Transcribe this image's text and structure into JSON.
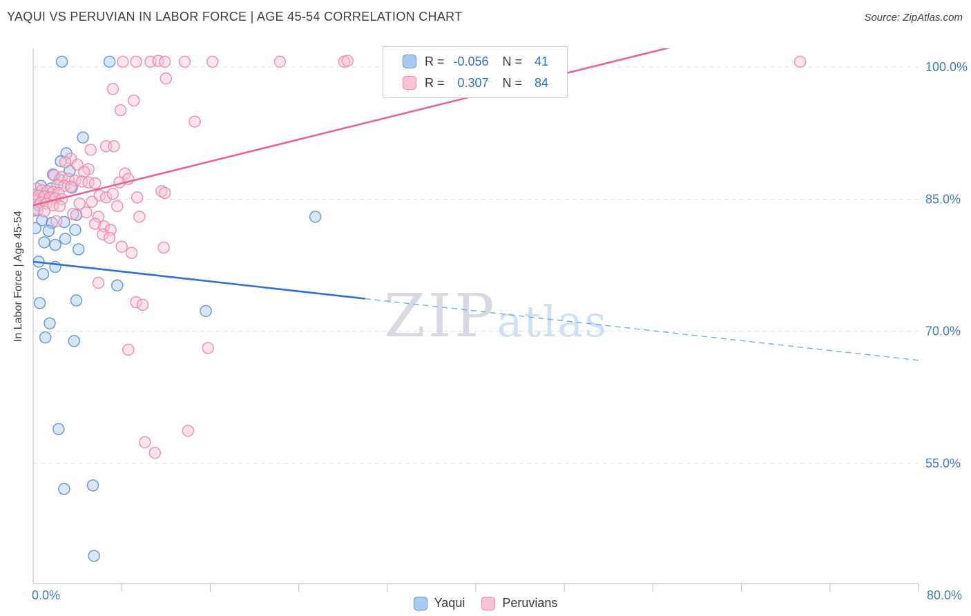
{
  "header": {
    "title": "YAQUI VS PERUVIAN IN LABOR FORCE | AGE 45-54 CORRELATION CHART",
    "source": "Source: ZipAtlas.com"
  },
  "axes": {
    "y_label": "In Labor Force | Age 45-54",
    "x_min_label": "0.0%",
    "x_max_label": "80.0%"
  },
  "watermark": {
    "zip": "ZIP",
    "atlas": "atlas"
  },
  "stats_legend": {
    "rows": [
      {
        "series": "Yaqui",
        "r_label": "R =",
        "r_value": "-0.056",
        "n_label": "N =",
        "n_value": "41"
      },
      {
        "series": "Peruvians",
        "r_label": "R =",
        "r_value": "0.307",
        "n_label": "N =",
        "n_value": "84"
      }
    ]
  },
  "bottom_legend": {
    "items": [
      {
        "label": "Yaqui"
      },
      {
        "label": "Peruvians"
      }
    ]
  },
  "colors": {
    "axis_text": "#3f7bbf",
    "grid": "#dcdfe3",
    "axis_line": "#c0c4c8",
    "yaqui_stroke": "#5b8fd4",
    "yaqui_fill": "#a8c9f0",
    "peruvian_stroke": "#ef86ab",
    "peruvian_fill": "#f9c3d3"
  },
  "chart_data": {
    "type": "scatter",
    "title": "Yaqui vs Peruvian In Labor Force | Age 45-54",
    "xlabel": "",
    "ylabel": "In Labor Force | Age 45-54",
    "x_range": [
      0,
      80
    ],
    "y_range": [
      41,
      102
    ],
    "x_tick_step": 8,
    "grid": "horizontal-dashed",
    "y_gridlines": [
      {
        "value": 100,
        "label": "100.0%"
      },
      {
        "value": 85,
        "label": "85.0%"
      },
      {
        "value": 70,
        "label": "70.0%"
      },
      {
        "value": 55,
        "label": "55.0%"
      }
    ],
    "series": [
      {
        "name": "Yaqui",
        "r": -0.056,
        "n": 41,
        "stroke": "#5b8fd4",
        "fill": "#a8c9f0",
        "points": [
          [
            2.6,
            100.6
          ],
          [
            6.9,
            100.6
          ],
          [
            4.5,
            92.0
          ],
          [
            3.0,
            90.2
          ],
          [
            2.5,
            89.3
          ],
          [
            3.3,
            88.2
          ],
          [
            1.8,
            87.8
          ],
          [
            2.4,
            87.2
          ],
          [
            0.7,
            86.5
          ],
          [
            1.6,
            86.2
          ],
          [
            3.5,
            86.3
          ],
          [
            0.2,
            85.5
          ],
          [
            0.9,
            85.0
          ],
          [
            0.5,
            84.3
          ],
          [
            0.1,
            83.7
          ],
          [
            3.9,
            83.2
          ],
          [
            25.5,
            83.0
          ],
          [
            0.8,
            82.6
          ],
          [
            1.7,
            82.3
          ],
          [
            2.8,
            82.4
          ],
          [
            0.2,
            81.7
          ],
          [
            1.4,
            81.4
          ],
          [
            3.8,
            81.5
          ],
          [
            2.9,
            80.5
          ],
          [
            1.0,
            80.1
          ],
          [
            2.0,
            79.8
          ],
          [
            4.1,
            79.3
          ],
          [
            0.5,
            77.9
          ],
          [
            2.0,
            77.3
          ],
          [
            0.9,
            76.5
          ],
          [
            7.6,
            75.2
          ],
          [
            3.9,
            73.5
          ],
          [
            0.6,
            73.2
          ],
          [
            15.6,
            72.3
          ],
          [
            1.5,
            70.9
          ],
          [
            3.7,
            68.9
          ],
          [
            1.1,
            69.3
          ],
          [
            2.3,
            58.9
          ],
          [
            2.8,
            52.1
          ],
          [
            5.4,
            52.5
          ],
          [
            5.5,
            44.5
          ]
        ]
      },
      {
        "name": "Peruvians",
        "r": 0.307,
        "n": 84,
        "stroke": "#ef86ab",
        "fill": "#f9c3d3",
        "points": [
          [
            8.1,
            100.6
          ],
          [
            9.3,
            100.6
          ],
          [
            10.6,
            100.6
          ],
          [
            11.3,
            100.7
          ],
          [
            11.9,
            100.6
          ],
          [
            13.7,
            100.6
          ],
          [
            16.2,
            100.6
          ],
          [
            22.3,
            100.6
          ],
          [
            28.1,
            100.6
          ],
          [
            28.4,
            100.7
          ],
          [
            69.3,
            100.6
          ],
          [
            12.0,
            98.7
          ],
          [
            7.2,
            97.5
          ],
          [
            9.1,
            96.2
          ],
          [
            7.9,
            95.1
          ],
          [
            14.6,
            93.8
          ],
          [
            6.6,
            91.0
          ],
          [
            7.3,
            91.0
          ],
          [
            5.2,
            90.6
          ],
          [
            3.4,
            89.6
          ],
          [
            2.9,
            89.2
          ],
          [
            4.0,
            88.9
          ],
          [
            5.0,
            88.4
          ],
          [
            4.6,
            88.1
          ],
          [
            8.3,
            87.9
          ],
          [
            1.9,
            87.7
          ],
          [
            2.6,
            87.5
          ],
          [
            3.2,
            87.3
          ],
          [
            3.8,
            87.1
          ],
          [
            4.4,
            87.0
          ],
          [
            5.0,
            86.9
          ],
          [
            5.6,
            86.8
          ],
          [
            2.2,
            86.6
          ],
          [
            2.8,
            86.5
          ],
          [
            7.8,
            86.9
          ],
          [
            8.6,
            87.3
          ],
          [
            0.3,
            86.2
          ],
          [
            0.8,
            86.0
          ],
          [
            1.3,
            85.9
          ],
          [
            1.8,
            85.8
          ],
          [
            2.3,
            85.7
          ],
          [
            3.4,
            86.4
          ],
          [
            0.5,
            85.4
          ],
          [
            1.0,
            85.3
          ],
          [
            1.5,
            85.2
          ],
          [
            2.0,
            85.1
          ],
          [
            2.6,
            85.0
          ],
          [
            6.0,
            85.4
          ],
          [
            6.6,
            85.2
          ],
          [
            7.2,
            85.6
          ],
          [
            9.4,
            85.2
          ],
          [
            11.6,
            85.9
          ],
          [
            0.2,
            84.8
          ],
          [
            0.7,
            84.6
          ],
          [
            1.2,
            84.5
          ],
          [
            1.8,
            84.3
          ],
          [
            2.4,
            84.2
          ],
          [
            4.2,
            84.5
          ],
          [
            5.3,
            84.7
          ],
          [
            7.6,
            84.2
          ],
          [
            11.9,
            85.7
          ],
          [
            0.4,
            83.8
          ],
          [
            1.0,
            83.6
          ],
          [
            3.6,
            83.3
          ],
          [
            4.8,
            83.5
          ],
          [
            5.9,
            83.0
          ],
          [
            9.6,
            83.0
          ],
          [
            2.1,
            82.5
          ],
          [
            5.6,
            82.2
          ],
          [
            6.4,
            81.9
          ],
          [
            7.0,
            81.5
          ],
          [
            6.3,
            81.0
          ],
          [
            6.9,
            80.6
          ],
          [
            8.0,
            79.6
          ],
          [
            11.8,
            79.5
          ],
          [
            8.9,
            78.9
          ],
          [
            5.9,
            75.5
          ],
          [
            9.3,
            73.3
          ],
          [
            9.9,
            73.0
          ],
          [
            8.6,
            67.9
          ],
          [
            15.8,
            68.1
          ],
          [
            10.1,
            57.4
          ],
          [
            11.0,
            56.2
          ],
          [
            14.0,
            58.7
          ]
        ]
      }
    ],
    "trend_lines": [
      {
        "name": "Yaqui",
        "color": "#2e6fd0",
        "dash_color": "#77a9e2",
        "solid": [
          [
            0,
            77.9
          ],
          [
            30,
            73.7
          ]
        ],
        "dashed": [
          [
            30,
            73.7
          ],
          [
            80,
            66.7
          ]
        ]
      },
      {
        "name": "Peruvians",
        "color": "#e9638f",
        "solid": [
          [
            0,
            84.3
          ],
          [
            57.5,
            102.2
          ]
        ]
      }
    ],
    "legend_position": "top-center"
  }
}
